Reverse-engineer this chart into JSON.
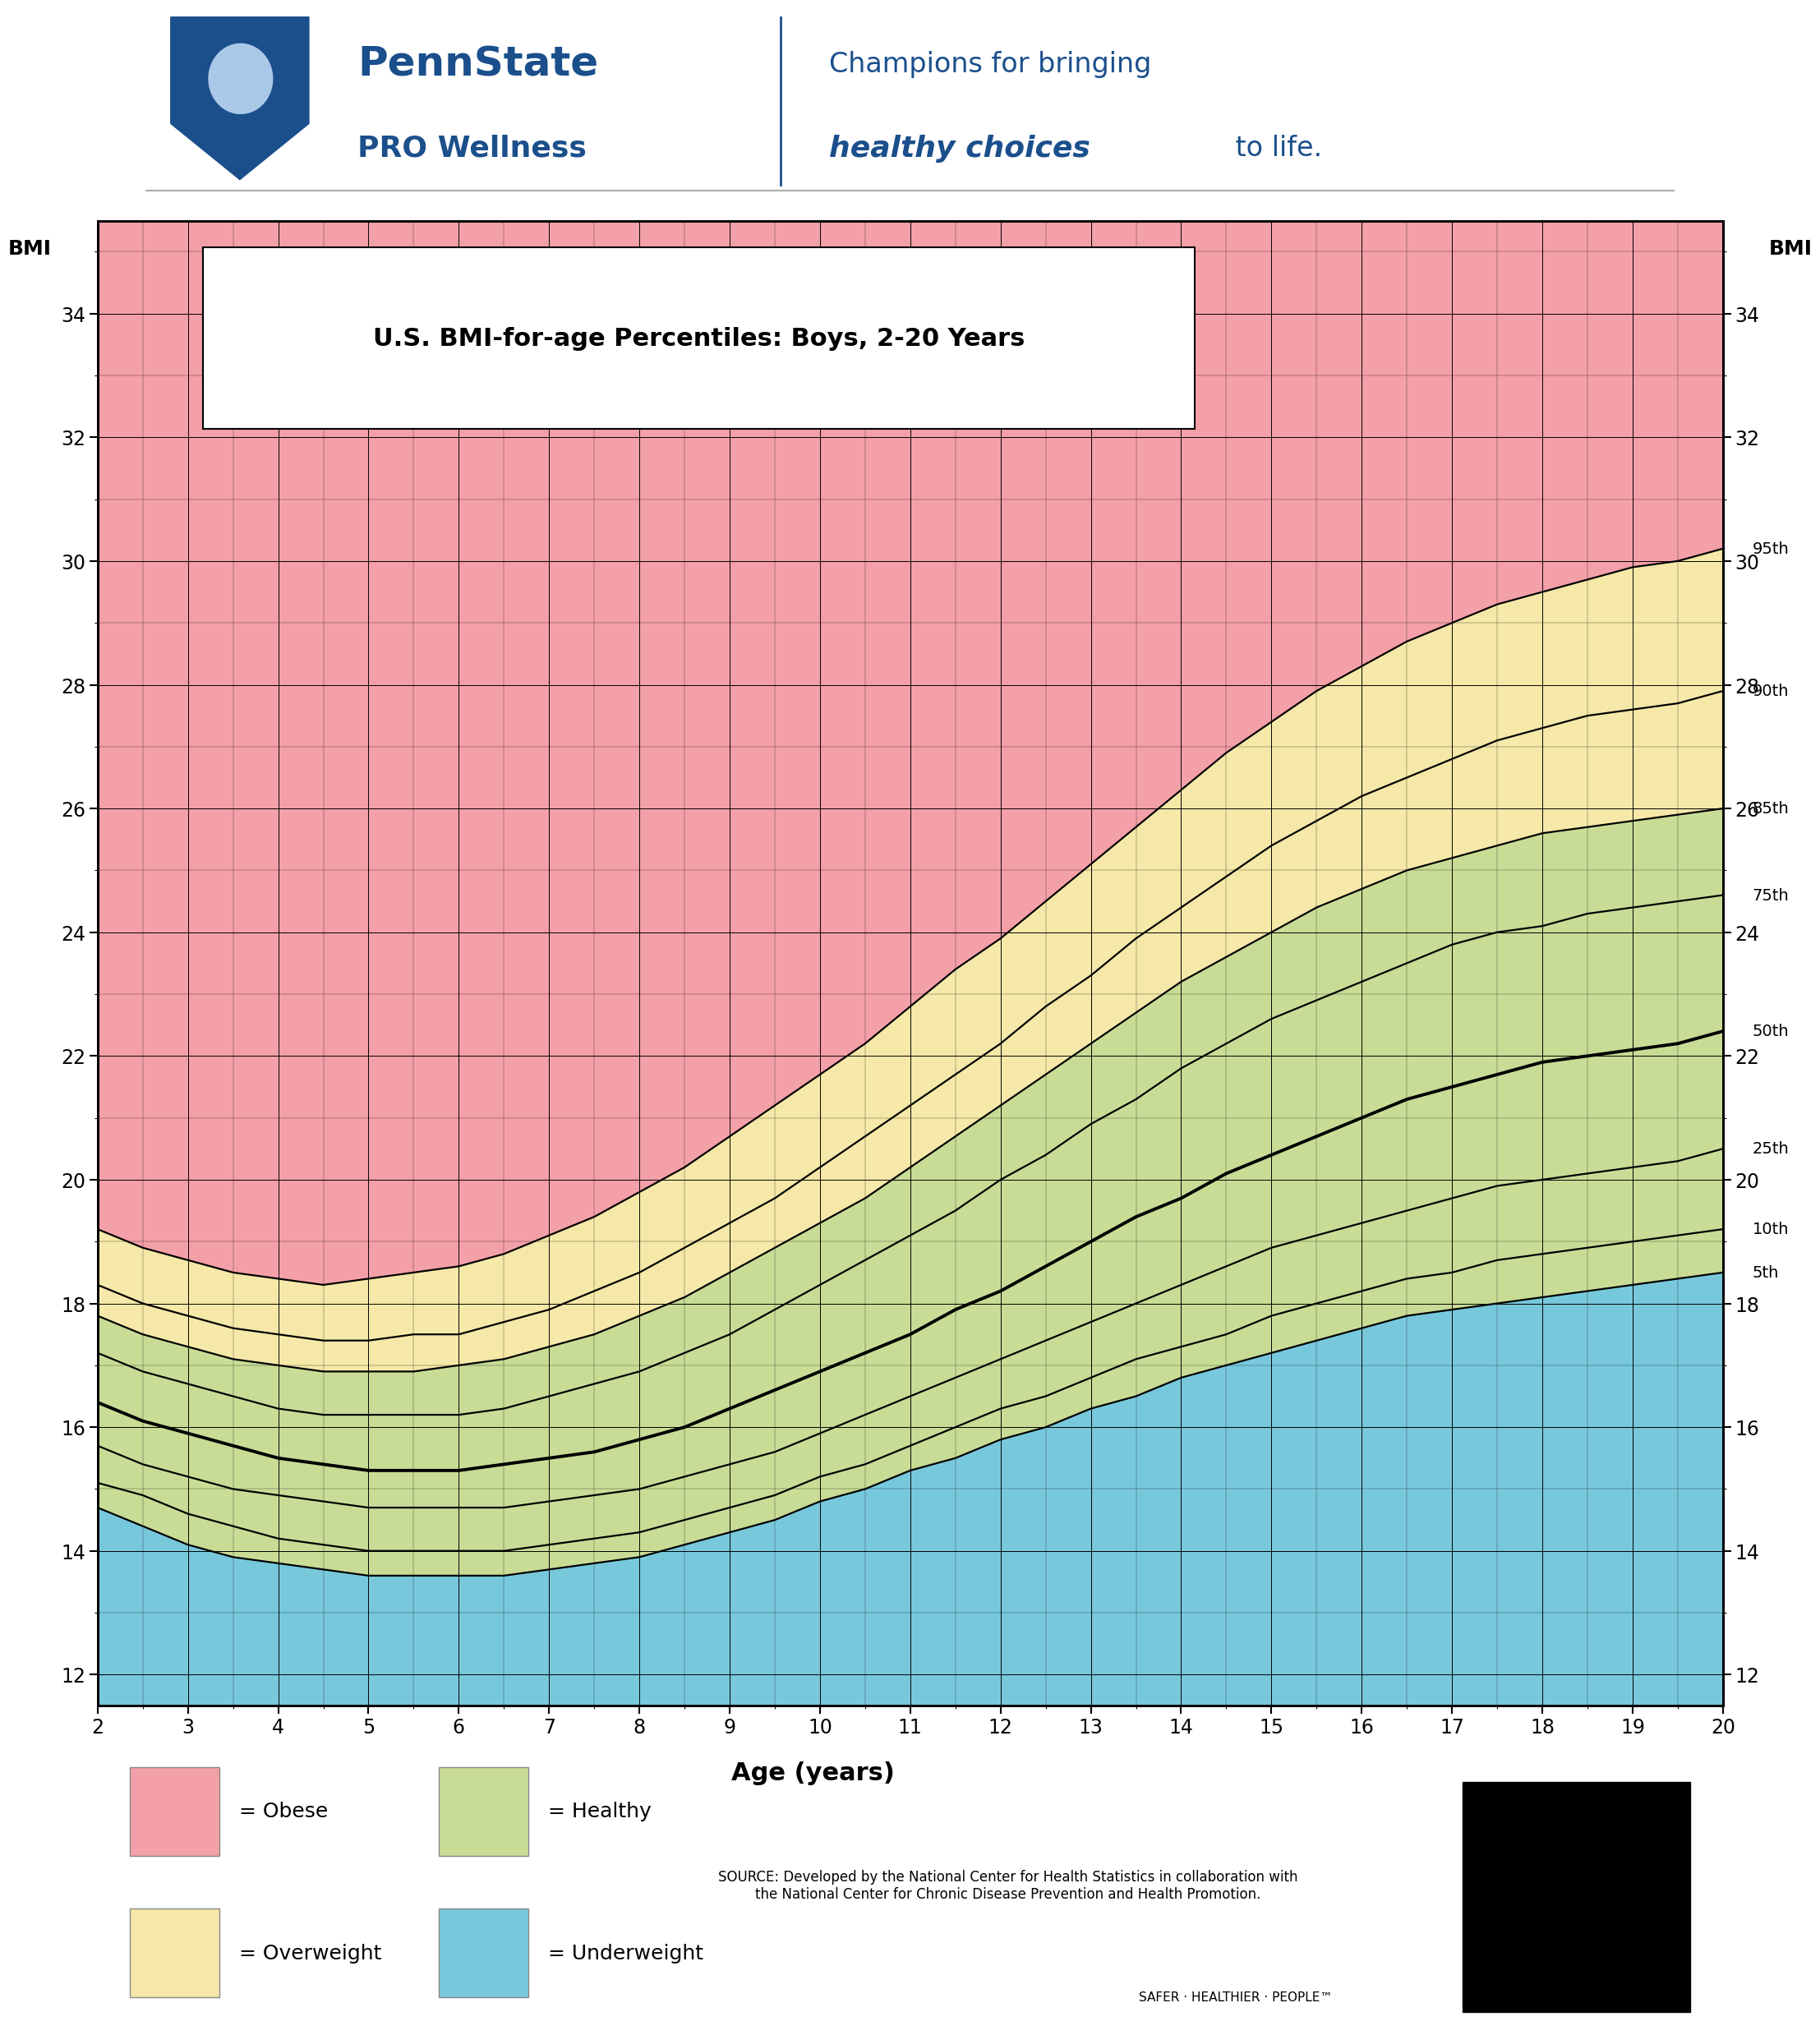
{
  "title": "U.S. BMI-for-age Percentiles: Boys, 2-20 Years",
  "xlabel": "Age (years)",
  "xlim": [
    2,
    20
  ],
  "ylim": [
    11.5,
    35.5
  ],
  "yticks": [
    12,
    14,
    16,
    18,
    20,
    22,
    24,
    26,
    28,
    30,
    32,
    34
  ],
  "xticks": [
    2,
    3,
    4,
    5,
    6,
    7,
    8,
    9,
    10,
    11,
    12,
    13,
    14,
    15,
    16,
    17,
    18,
    19,
    20
  ],
  "color_obese": "#F4A0A8",
  "color_overweight": "#F5E8A8",
  "color_healthy": "#C8DC96",
  "color_underweight": "#78C8DC",
  "color_background": "#ffffff",
  "pennstate_blue": "#1B4F8C",
  "ages": [
    2,
    2.5,
    3,
    3.5,
    4,
    4.5,
    5,
    5.5,
    6,
    6.5,
    7,
    7.5,
    8,
    8.5,
    9,
    9.5,
    10,
    10.5,
    11,
    11.5,
    12,
    12.5,
    13,
    13.5,
    14,
    14.5,
    15,
    15.5,
    16,
    16.5,
    17,
    17.5,
    18,
    18.5,
    19,
    19.5,
    20
  ],
  "p5": [
    14.7,
    14.4,
    14.1,
    13.9,
    13.8,
    13.7,
    13.6,
    13.6,
    13.6,
    13.6,
    13.7,
    13.8,
    13.9,
    14.1,
    14.3,
    14.5,
    14.8,
    15.0,
    15.3,
    15.5,
    15.8,
    16.0,
    16.3,
    16.5,
    16.8,
    17.0,
    17.2,
    17.4,
    17.6,
    17.8,
    17.9,
    18.0,
    18.1,
    18.2,
    18.3,
    18.4,
    18.5
  ],
  "p10": [
    15.1,
    14.9,
    14.6,
    14.4,
    14.2,
    14.1,
    14.0,
    14.0,
    14.0,
    14.0,
    14.1,
    14.2,
    14.3,
    14.5,
    14.7,
    14.9,
    15.2,
    15.4,
    15.7,
    16.0,
    16.3,
    16.5,
    16.8,
    17.1,
    17.3,
    17.5,
    17.8,
    18.0,
    18.2,
    18.4,
    18.5,
    18.7,
    18.8,
    18.9,
    19.0,
    19.1,
    19.2
  ],
  "p25": [
    15.7,
    15.4,
    15.2,
    15.0,
    14.9,
    14.8,
    14.7,
    14.7,
    14.7,
    14.7,
    14.8,
    14.9,
    15.0,
    15.2,
    15.4,
    15.6,
    15.9,
    16.2,
    16.5,
    16.8,
    17.1,
    17.4,
    17.7,
    18.0,
    18.3,
    18.6,
    18.9,
    19.1,
    19.3,
    19.5,
    19.7,
    19.9,
    20.0,
    20.1,
    20.2,
    20.3,
    20.5
  ],
  "p50": [
    16.4,
    16.1,
    15.9,
    15.7,
    15.5,
    15.4,
    15.3,
    15.3,
    15.3,
    15.4,
    15.5,
    15.6,
    15.8,
    16.0,
    16.3,
    16.6,
    16.9,
    17.2,
    17.5,
    17.9,
    18.2,
    18.6,
    19.0,
    19.4,
    19.7,
    20.1,
    20.4,
    20.7,
    21.0,
    21.3,
    21.5,
    21.7,
    21.9,
    22.0,
    22.1,
    22.2,
    22.4
  ],
  "p75": [
    17.2,
    16.9,
    16.7,
    16.5,
    16.3,
    16.2,
    16.2,
    16.2,
    16.2,
    16.3,
    16.5,
    16.7,
    16.9,
    17.2,
    17.5,
    17.9,
    18.3,
    18.7,
    19.1,
    19.5,
    20.0,
    20.4,
    20.9,
    21.3,
    21.8,
    22.2,
    22.6,
    22.9,
    23.2,
    23.5,
    23.8,
    24.0,
    24.1,
    24.3,
    24.4,
    24.5,
    24.6
  ],
  "p85": [
    17.8,
    17.5,
    17.3,
    17.1,
    17.0,
    16.9,
    16.9,
    16.9,
    17.0,
    17.1,
    17.3,
    17.5,
    17.8,
    18.1,
    18.5,
    18.9,
    19.3,
    19.7,
    20.2,
    20.7,
    21.2,
    21.7,
    22.2,
    22.7,
    23.2,
    23.6,
    24.0,
    24.4,
    24.7,
    25.0,
    25.2,
    25.4,
    25.6,
    25.7,
    25.8,
    25.9,
    26.0
  ],
  "p90": [
    18.3,
    18.0,
    17.8,
    17.6,
    17.5,
    17.4,
    17.4,
    17.5,
    17.5,
    17.7,
    17.9,
    18.2,
    18.5,
    18.9,
    19.3,
    19.7,
    20.2,
    20.7,
    21.2,
    21.7,
    22.2,
    22.8,
    23.3,
    23.9,
    24.4,
    24.9,
    25.4,
    25.8,
    26.2,
    26.5,
    26.8,
    27.1,
    27.3,
    27.5,
    27.6,
    27.7,
    27.9
  ],
  "p95": [
    19.2,
    18.9,
    18.7,
    18.5,
    18.4,
    18.3,
    18.4,
    18.5,
    18.6,
    18.8,
    19.1,
    19.4,
    19.8,
    20.2,
    20.7,
    21.2,
    21.7,
    22.2,
    22.8,
    23.4,
    23.9,
    24.5,
    25.1,
    25.7,
    26.3,
    26.9,
    27.4,
    27.9,
    28.3,
    28.7,
    29.0,
    29.3,
    29.5,
    29.7,
    29.9,
    30.0,
    30.2
  ]
}
